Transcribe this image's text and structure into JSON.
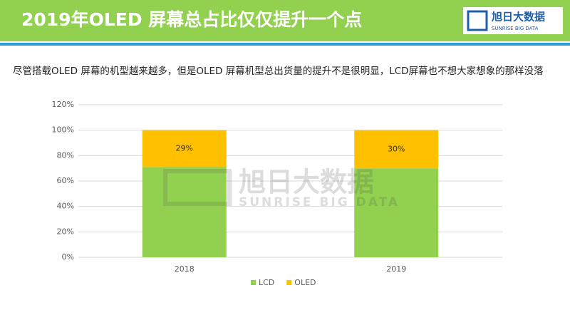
{
  "header": {
    "title": "2019年OLED 屏幕总占比仅仅提升一个点",
    "logo_text": "旭日大数据",
    "logo_subtext": "SUNRISE BIG DATA"
  },
  "subtitle": "尽管搭载OLED 屏幕的机型越来越多，但是OLED 屏幕机型总出货量的提升不是很明显，LCD屏幕也不想大家想象的那样没落",
  "watermark": {
    "text": "旭日大数据",
    "subtext": "SUNRISE BIG DATA"
  },
  "chart_data": {
    "type": "stacked_bar",
    "categories": [
      "2018",
      "2019"
    ],
    "series": [
      {
        "name": "LCD",
        "color": "#92d050",
        "values": [
          71,
          70
        ]
      },
      {
        "name": "OLED",
        "color": "#ffc000",
        "values": [
          29,
          30
        ],
        "value_labels": [
          "29%",
          "30%"
        ]
      }
    ],
    "ylim": [
      0,
      120
    ],
    "yticks": [
      {
        "value": 0,
        "label": "0%"
      },
      {
        "value": 20,
        "label": "20%"
      },
      {
        "value": 40,
        "label": "40%"
      },
      {
        "value": 60,
        "label": "60%"
      },
      {
        "value": 80,
        "label": "80%"
      },
      {
        "value": 100,
        "label": "100%"
      },
      {
        "value": 120,
        "label": "120%"
      }
    ],
    "grid": true,
    "legend": "bottom"
  }
}
